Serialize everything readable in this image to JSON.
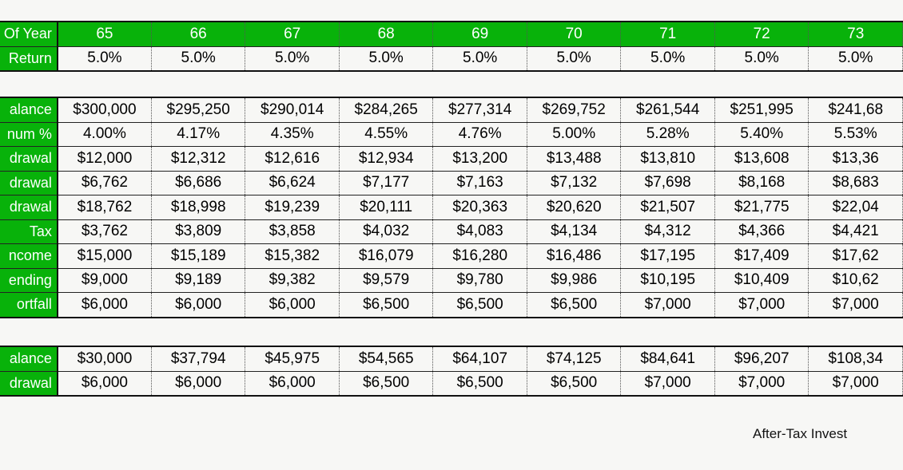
{
  "years": [
    "65",
    "66",
    "67",
    "68",
    "69",
    "70",
    "71",
    "72",
    "73"
  ],
  "top_rows": [
    {
      "label": "Of Year",
      "values": [
        "65",
        "66",
        "67",
        "68",
        "69",
        "70",
        "71",
        "72",
        "73"
      ]
    },
    {
      "label": "Return",
      "values": [
        "5.0%",
        "5.0%",
        "5.0%",
        "5.0%",
        "5.0%",
        "5.0%",
        "5.0%",
        "5.0%",
        "5.0%"
      ]
    }
  ],
  "main_rows": [
    {
      "label": "alance",
      "values": [
        "$300,000",
        "$295,250",
        "$290,014",
        "$284,265",
        "$277,314",
        "$269,752",
        "$261,544",
        "$251,995",
        "$241,68"
      ]
    },
    {
      "label": "num %",
      "values": [
        "4.00%",
        "4.17%",
        "4.35%",
        "4.55%",
        "4.76%",
        "5.00%",
        "5.28%",
        "5.40%",
        "5.53%"
      ]
    },
    {
      "label": "drawal",
      "values": [
        "$12,000",
        "$12,312",
        "$12,616",
        "$12,934",
        "$13,200",
        "$13,488",
        "$13,810",
        "$13,608",
        "$13,36"
      ]
    },
    {
      "label": "drawal",
      "values": [
        "$6,762",
        "$6,686",
        "$6,624",
        "$7,177",
        "$7,163",
        "$7,132",
        "$7,698",
        "$8,168",
        "$8,683"
      ]
    },
    {
      "label": "drawal",
      "values": [
        "$18,762",
        "$18,998",
        "$19,239",
        "$20,111",
        "$20,363",
        "$20,620",
        "$21,507",
        "$21,775",
        "$22,04"
      ]
    },
    {
      "label": "Tax",
      "values": [
        "$3,762",
        "$3,809",
        "$3,858",
        "$4,032",
        "$4,083",
        "$4,134",
        "$4,312",
        "$4,366",
        "$4,421"
      ]
    },
    {
      "label": "ncome",
      "values": [
        "$15,000",
        "$15,189",
        "$15,382",
        "$16,079",
        "$16,280",
        "$16,486",
        "$17,195",
        "$17,409",
        "$17,62"
      ]
    },
    {
      "label": "ending",
      "values": [
        "$9,000",
        "$9,189",
        "$9,382",
        "$9,579",
        "$9,780",
        "$9,986",
        "$10,195",
        "$10,409",
        "$10,62"
      ]
    },
    {
      "label": "ortfall",
      "values": [
        "$6,000",
        "$6,000",
        "$6,000",
        "$6,500",
        "$6,500",
        "$6,500",
        "$7,000",
        "$7,000",
        "$7,000"
      ]
    }
  ],
  "bottom_rows": [
    {
      "label": "alance",
      "values": [
        "$30,000",
        "$37,794",
        "$45,975",
        "$54,565",
        "$64,107",
        "$74,125",
        "$84,641",
        "$96,207",
        "$108,34"
      ]
    },
    {
      "label": "drawal",
      "values": [
        "$6,000",
        "$6,000",
        "$6,000",
        "$6,500",
        "$6,500",
        "$6,500",
        "$7,000",
        "$7,000",
        "$7,000"
      ]
    }
  ],
  "footer_text": "After-Tax Invest"
}
